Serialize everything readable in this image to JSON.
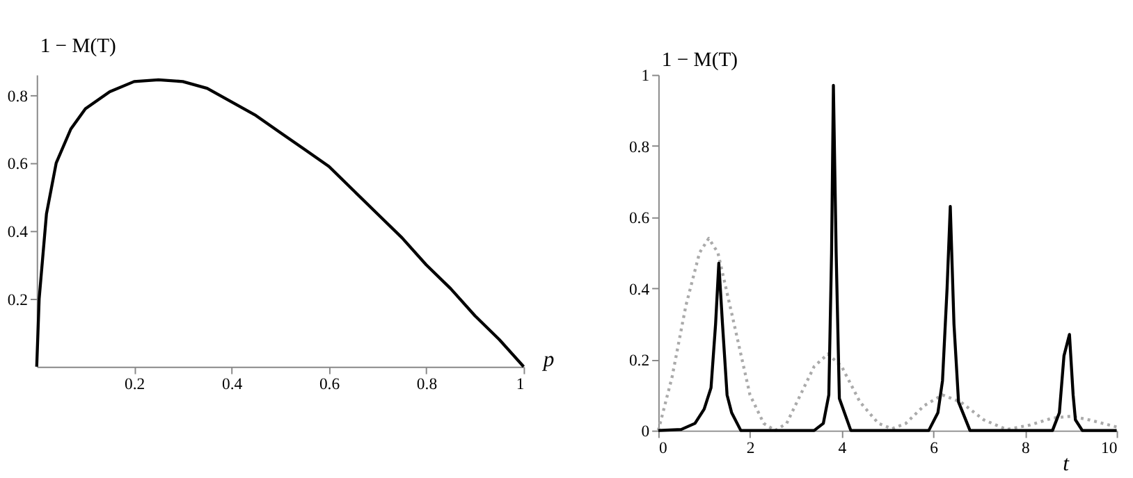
{
  "chart_data": [
    {
      "type": "line",
      "ylabel": "1 − M(T)",
      "xlabel": "p",
      "xlim": [
        0,
        1
      ],
      "ylim": [
        0,
        0.86
      ],
      "xticks": [
        0.2,
        0.4,
        0.6,
        0.8,
        1
      ],
      "yticks": [
        0.2,
        0.4,
        0.6,
        0.8
      ],
      "grid": false,
      "marker": "none",
      "series": [
        {
          "color": "#000000",
          "line_style": "solid",
          "x": [
            0,
            0.005,
            0.02,
            0.04,
            0.07,
            0.1,
            0.15,
            0.2,
            0.25,
            0.3,
            0.35,
            0.4,
            0.45,
            0.5,
            0.55,
            0.6,
            0.65,
            0.7,
            0.75,
            0.8,
            0.85,
            0.9,
            0.95,
            1
          ],
          "values": [
            0,
            0.2,
            0.45,
            0.6,
            0.7,
            0.76,
            0.81,
            0.84,
            0.845,
            0.84,
            0.82,
            0.78,
            0.74,
            0.69,
            0.64,
            0.59,
            0.52,
            0.45,
            0.38,
            0.3,
            0.23,
            0.15,
            0.08,
            0
          ]
        }
      ]
    },
    {
      "type": "line",
      "ylabel": "1 − M(T)",
      "xlabel": "t",
      "xlim": [
        0,
        10
      ],
      "ylim": [
        0,
        1
      ],
      "xticks": [
        0,
        2,
        4,
        6,
        8,
        10
      ],
      "yticks": [
        0,
        0.2,
        0.4,
        0.6,
        0.8,
        1
      ],
      "grid": false,
      "marker": "none",
      "series": [
        {
          "color": "#aaaaaa",
          "line_style": "dotted",
          "x": [
            0,
            0.3,
            0.6,
            0.9,
            1.1,
            1.3,
            1.6,
            2.0,
            2.3,
            2.55,
            2.8,
            3.1,
            3.4,
            3.7,
            4.0,
            4.4,
            4.8,
            5.1,
            5.4,
            5.8,
            6.2,
            6.6,
            7.1,
            7.6,
            8.1,
            8.6,
            9.0,
            9.4,
            10
          ],
          "values": [
            0,
            0.15,
            0.35,
            0.5,
            0.54,
            0.5,
            0.33,
            0.1,
            0.02,
            0,
            0.02,
            0.1,
            0.18,
            0.215,
            0.18,
            0.08,
            0.02,
            0.005,
            0.02,
            0.07,
            0.1,
            0.08,
            0.03,
            0.003,
            0.015,
            0.035,
            0.04,
            0.03,
            0.01
          ]
        },
        {
          "color": "#000000",
          "line_style": "solid",
          "x": [
            0,
            0.5,
            0.8,
            1.0,
            1.15,
            1.25,
            1.32,
            1.4,
            1.5,
            1.6,
            1.8,
            3.4,
            3.6,
            3.72,
            3.78,
            3.82,
            3.88,
            3.95,
            4.2,
            5.9,
            6.1,
            6.2,
            6.3,
            6.37,
            6.45,
            6.55,
            6.8,
            8.6,
            8.75,
            8.85,
            8.97,
            9.05,
            9.1,
            9.25,
            10
          ],
          "values": [
            0,
            0.003,
            0.02,
            0.06,
            0.12,
            0.3,
            0.47,
            0.3,
            0.1,
            0.05,
            0,
            0,
            0.02,
            0.1,
            0.5,
            0.97,
            0.5,
            0.09,
            0,
            0,
            0.05,
            0.14,
            0.4,
            0.63,
            0.3,
            0.08,
            0,
            0,
            0.05,
            0.21,
            0.27,
            0.1,
            0.03,
            0,
            0
          ]
        }
      ]
    }
  ]
}
